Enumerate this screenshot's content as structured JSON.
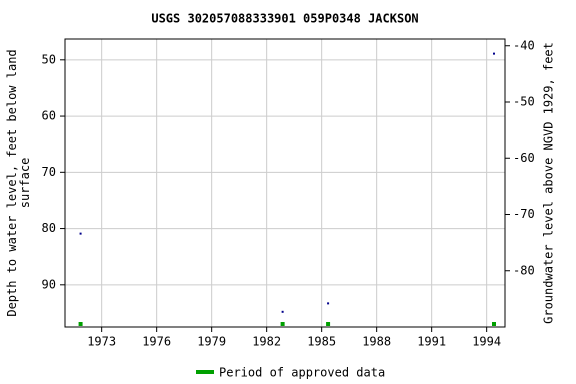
{
  "chart_data": {
    "type": "scatter",
    "title": "USGS 302057088333901 059P0348  JACKSON",
    "y_label": "Depth to water level, feet below land surface",
    "y2_label": "Groundwater level above NGVD 1929, feet",
    "x": [
      1971.85,
      1982.87,
      1985.35,
      1994.4
    ],
    "values": [
      80.9,
      94.8,
      93.3,
      48.9
    ],
    "color": "#00008b",
    "approved": {
      "name": "Period of approved data",
      "color": "#00a000",
      "x": [
        1971.85,
        1982.87,
        1985.35,
        1994.4
      ]
    },
    "xlim": [
      1971.0,
      1995.0
    ],
    "xticks": [
      1973,
      1976,
      1979,
      1982,
      1985,
      1988,
      1991,
      1994
    ],
    "ylim": [
      97.5,
      46.3
    ],
    "yticks": [
      50,
      60,
      70,
      80,
      90
    ],
    "y2lim": [
      -90,
      -38.8
    ],
    "y2ticks": [
      -40,
      -50,
      -60,
      -70,
      -80
    ],
    "grid": true
  }
}
